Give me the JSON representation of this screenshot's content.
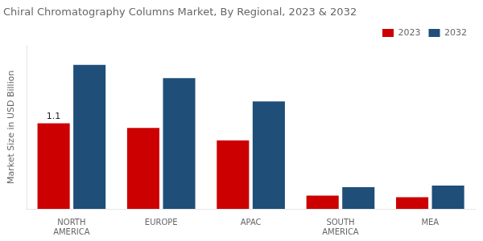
{
  "chart_data": {
    "type": "bar",
    "title": "Chiral Chromatography Columns Market, By Regional, 2023 & 2032",
    "y_label": "Market Size in USD Billion",
    "categories": [
      "NORTH\nAMERICA",
      "EUROPE",
      "APAC",
      "SOUTH\nAMERICA",
      "MEA"
    ],
    "series": [
      {
        "name": "2023",
        "color": "#cc0000",
        "values": [
          1.1,
          1.04,
          0.88,
          0.17,
          0.15
        ]
      },
      {
        "name": "2032",
        "color": "#1f4e79",
        "values": [
          1.85,
          1.68,
          1.38,
          0.28,
          0.3
        ]
      }
    ],
    "ylim": [
      0,
      2.1
    ],
    "tick_labels": "x",
    "grid": false,
    "legend": "upper right",
    "annotations": [
      {
        "text": "1.1",
        "category": "NORTH\nAMERICA",
        "series": "2023"
      }
    ]
  }
}
